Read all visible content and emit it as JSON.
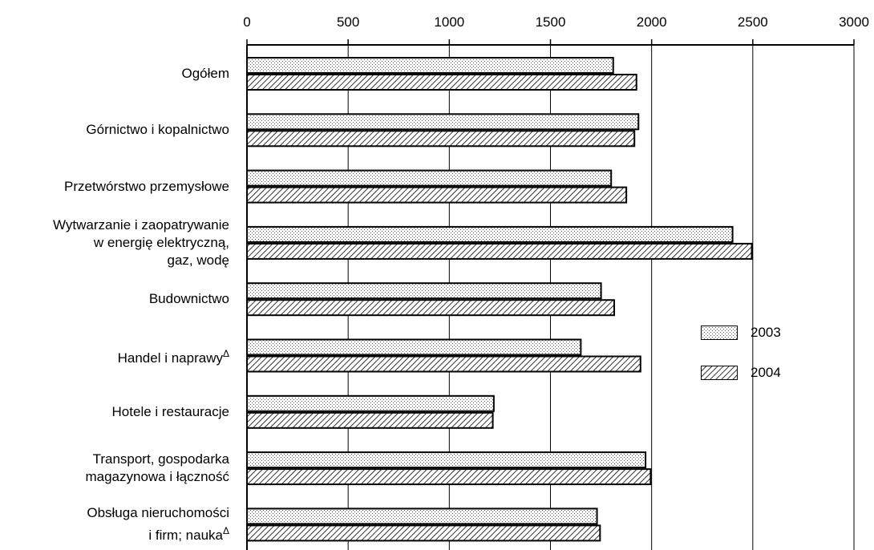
{
  "chart_data": {
    "type": "bar",
    "orientation": "horizontal",
    "categories": [
      [
        "Ogółem"
      ],
      [
        "Górnictwo i kopalnictwo"
      ],
      [
        "Przetwórstwo przemysłowe"
      ],
      [
        "Wytwarzanie i zaopatrywanie",
        "w energię elektryczną,",
        "gaz, wodę"
      ],
      [
        "Budownictwo"
      ],
      [
        "Handel i naprawy",
        "Δ"
      ],
      [
        "Hotele i restauracje"
      ],
      [
        "Transport, gospodarka",
        "magazynowa i łączność"
      ],
      [
        "Obsługa nieruchomości",
        "i firm; nauka",
        "Δ"
      ]
    ],
    "category_text": [
      "Ogółem",
      "Górnictwo i kopalnictwo",
      "Przetwórstwo przemysłowe",
      "Wytwarzanie i zaopatrywanie w energię elektryczną, gaz, wodę",
      "Budownictwo",
      "Handel i naprawyΔ",
      "Hotele i restauracje",
      "Transport, gospodarka magazynowa i łączność",
      "Obsługa nieruchomości i firm; naukaΔ"
    ],
    "series": [
      {
        "name": "2003",
        "pattern": "dots",
        "values": [
          1810,
          1935,
          1800,
          2400,
          1750,
          1650,
          1220,
          1970,
          1730
        ]
      },
      {
        "name": "2004",
        "pattern": "hatch",
        "values": [
          1925,
          1915,
          1875,
          2495,
          1815,
          1945,
          1215,
          1995,
          1745
        ]
      }
    ],
    "xlim": [
      0,
      3000
    ],
    "ticks": [
      0,
      500,
      1000,
      1500,
      2000,
      2500,
      3000
    ],
    "tick_labels": [
      "0",
      "500",
      "1000",
      "1500",
      "2000",
      "2500",
      "3000"
    ],
    "axis_position": "top",
    "grid": true,
    "legend_position": "right",
    "xlabel": "",
    "ylabel": "",
    "title": ""
  }
}
